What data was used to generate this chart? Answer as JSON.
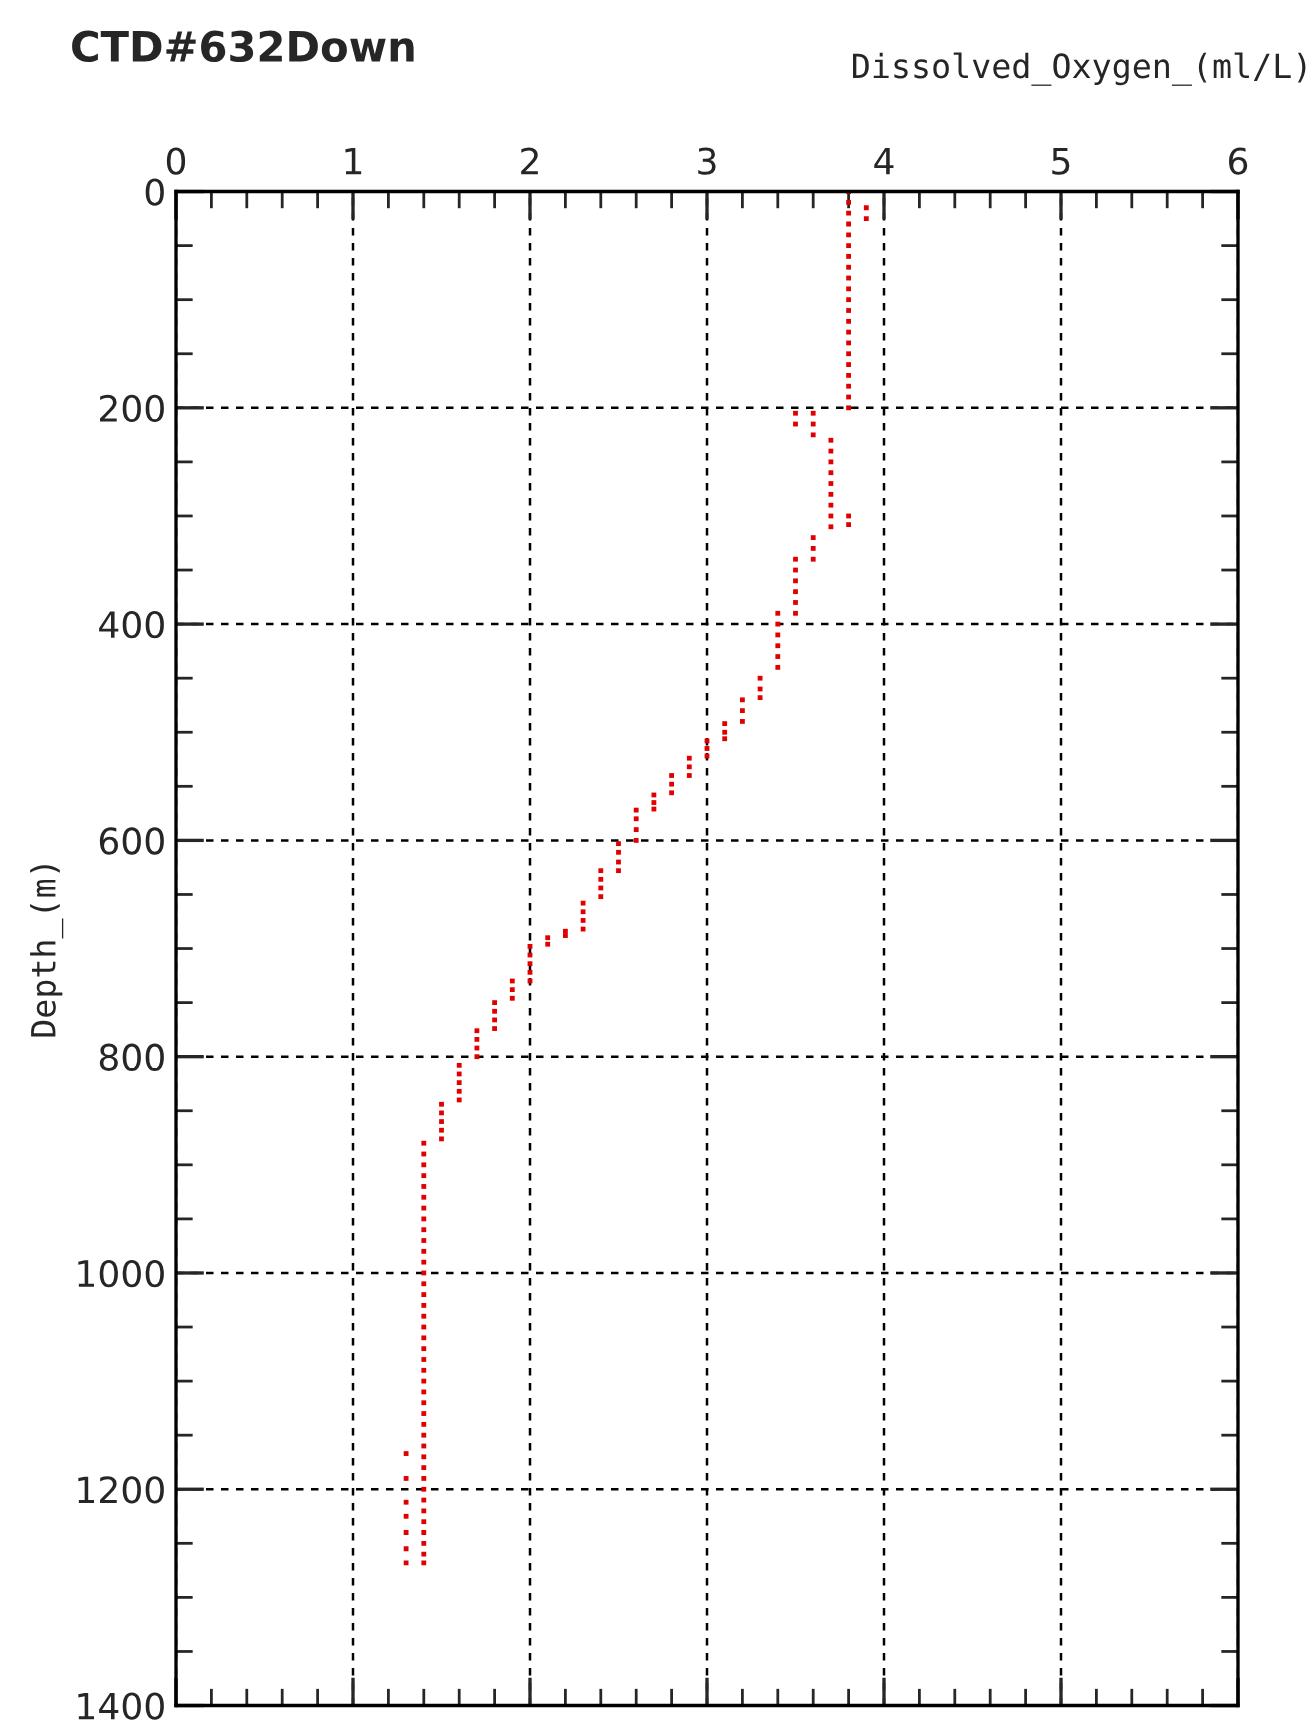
{
  "chart_data": {
    "type": "scatter",
    "title": "CTD#632Down",
    "xlabel": "Dissolved_Oxygen_(ml/L)",
    "ylabel": "Depth_(m)",
    "xlim": [
      0,
      6
    ],
    "ylim": [
      1400,
      0
    ],
    "xticks": [
      0,
      {
        "value": 0.2,
        "label": null
      },
      {
        "value": 0.4,
        "label": null
      },
      {
        "value": 0.6,
        "label": null
      },
      {
        "value": 0.8,
        "label": null
      },
      1,
      {
        "value": 1.2,
        "label": null
      },
      {
        "value": 1.4,
        "label": null
      },
      {
        "value": 1.6,
        "label": null
      },
      {
        "value": 1.8,
        "label": null
      },
      2,
      {
        "value": 2.2,
        "label": null
      },
      {
        "value": 2.4,
        "label": null
      },
      {
        "value": 2.6,
        "label": null
      },
      {
        "value": 2.8,
        "label": null
      },
      3,
      {
        "value": 3.2,
        "label": null
      },
      {
        "value": 3.4,
        "label": null
      },
      {
        "value": 3.6,
        "label": null
      },
      {
        "value": 3.8,
        "label": null
      },
      4,
      {
        "value": 4.2,
        "label": null
      },
      {
        "value": 4.4,
        "label": null
      },
      {
        "value": 4.6,
        "label": null
      },
      {
        "value": 4.8,
        "label": null
      },
      5,
      {
        "value": 5.2,
        "label": null
      },
      {
        "value": 5.4,
        "label": null
      },
      {
        "value": 5.6,
        "label": null
      },
      {
        "value": 5.8,
        "label": null
      },
      6
    ],
    "yticks": [
      0,
      {
        "value": 50,
        "label": null
      },
      {
        "value": 100,
        "label": null
      },
      {
        "value": 150,
        "label": null
      },
      200,
      {
        "value": 250,
        "label": null
      },
      {
        "value": 300,
        "label": null
      },
      {
        "value": 350,
        "label": null
      },
      400,
      {
        "value": 450,
        "label": null
      },
      {
        "value": 500,
        "label": null
      },
      {
        "value": 550,
        "label": null
      },
      600,
      {
        "value": 650,
        "label": null
      },
      {
        "value": 700,
        "label": null
      },
      {
        "value": 750,
        "label": null
      },
      800,
      {
        "value": 850,
        "label": null
      },
      {
        "value": 900,
        "label": null
      },
      {
        "value": 950,
        "label": null
      },
      1000,
      {
        "value": 1050,
        "label": null
      },
      {
        "value": 1100,
        "label": null
      },
      {
        "value": 1150,
        "label": null
      },
      1200,
      {
        "value": 1250,
        "label": null
      },
      {
        "value": 1300,
        "label": null
      },
      {
        "value": 1350,
        "label": null
      },
      1400
    ],
    "grid": true,
    "marker": "square",
    "series": [
      {
        "color": "#e00000",
        "x": [
          3.8,
          3.8,
          3.8,
          3.8,
          3.8,
          3.8,
          3.8,
          3.8,
          3.8,
          3.8,
          3.8,
          3.8,
          3.8,
          3.8,
          3.8,
          3.8,
          3.8,
          3.8,
          3.8,
          3.8,
          3.8,
          3.9,
          3.9,
          3.5,
          3.5,
          3.6,
          3.6,
          3.6,
          3.7,
          3.7,
          3.7,
          3.7,
          3.7,
          3.7,
          3.7,
          3.7,
          3.7,
          3.8,
          3.8,
          3.6,
          3.6,
          3.6,
          3.5,
          3.5,
          3.5,
          3.5,
          3.5,
          3.5,
          3.4,
          3.4,
          3.4,
          3.4,
          3.4,
          3.4,
          3.3,
          3.3,
          3.3,
          3.2,
          3.2,
          3.2,
          3.1,
          3.1,
          3.1,
          3.0,
          3.0,
          3.0,
          2.9,
          2.9,
          2.9,
          2.8,
          2.8,
          2.8,
          2.7,
          2.7,
          2.7,
          2.6,
          2.6,
          2.6,
          2.6,
          2.5,
          2.5,
          2.5,
          2.5,
          2.4,
          2.4,
          2.4,
          2.4,
          2.3,
          2.3,
          2.3,
          2.3,
          2.2,
          2.2,
          2.1,
          2.1,
          2.0,
          2.0,
          2.0,
          2.0,
          2.0,
          1.9,
          1.9,
          1.9,
          1.8,
          1.8,
          1.8,
          1.8,
          1.7,
          1.7,
          1.7,
          1.7,
          1.6,
          1.6,
          1.6,
          1.6,
          1.6,
          1.5,
          1.5,
          1.5,
          1.5,
          1.5,
          1.4,
          1.4,
          1.4,
          1.4,
          1.4,
          1.4,
          1.4,
          1.4,
          1.4,
          1.4,
          1.4,
          1.4,
          1.4,
          1.4,
          1.4,
          1.4,
          1.4,
          1.4,
          1.4,
          1.4,
          1.4,
          1.4,
          1.4,
          1.4,
          1.4,
          1.4,
          1.4,
          1.4,
          1.4,
          1.4,
          1.4,
          1.4,
          1.4,
          1.4,
          1.4,
          1.4,
          1.4,
          1.4,
          1.4,
          1.4,
          1.3,
          1.3,
          1.3,
          1.3,
          1.3,
          1.3,
          1.3
        ],
        "values": [
          0,
          10,
          20,
          30,
          40,
          50,
          60,
          70,
          80,
          90,
          100,
          110,
          120,
          130,
          140,
          150,
          160,
          170,
          180,
          190,
          200,
          15,
          25,
          205,
          215,
          205,
          215,
          225,
          230,
          240,
          250,
          260,
          270,
          280,
          290,
          300,
          310,
          300,
          308,
          320,
          330,
          340,
          340,
          350,
          360,
          370,
          380,
          390,
          390,
          400,
          410,
          420,
          430,
          440,
          450,
          460,
          468,
          470,
          480,
          490,
          492,
          500,
          506,
          508,
          515,
          522,
          524,
          532,
          540,
          540,
          548,
          556,
          558,
          565,
          571,
          572,
          580,
          590,
          600,
          603,
          611,
          620,
          628,
          628,
          636,
          644,
          652,
          658,
          666,
          674,
          682,
          684,
          688,
          690,
          696,
          698,
          706,
          714,
          722,
          730,
          730,
          738,
          746,
          750,
          758,
          766,
          774,
          776,
          784,
          792,
          800,
          808,
          816,
          824,
          832,
          840,
          844,
          852,
          860,
          868,
          876,
          880,
          890,
          900,
          910,
          920,
          930,
          940,
          950,
          960,
          970,
          980,
          990,
          1000,
          1010,
          1020,
          1030,
          1040,
          1050,
          1060,
          1070,
          1080,
          1090,
          1100,
          1110,
          1120,
          1130,
          1140,
          1150,
          1160,
          1170,
          1180,
          1190,
          1200,
          1210,
          1220,
          1230,
          1240,
          1250,
          1260,
          1268,
          1167,
          1190,
          1212,
          1225,
          1240,
          1255,
          1268
        ]
      }
    ]
  }
}
